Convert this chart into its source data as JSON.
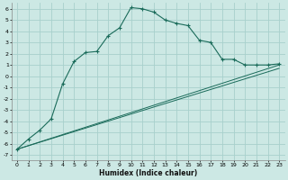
{
  "xlabel": "Humidex (Indice chaleur)",
  "bg_color": "#cce8e4",
  "grid_color": "#a8d0cc",
  "line_color": "#1a6b5a",
  "xlim": [
    -0.5,
    23.5
  ],
  "ylim": [
    -7.5,
    6.5
  ],
  "x_ticks": [
    0,
    1,
    2,
    3,
    4,
    5,
    6,
    7,
    8,
    9,
    10,
    11,
    12,
    13,
    14,
    15,
    16,
    17,
    18,
    19,
    20,
    21,
    22,
    23
  ],
  "y_ticks": [
    -7,
    -6,
    -5,
    -4,
    -3,
    -2,
    -1,
    0,
    1,
    2,
    3,
    4,
    5,
    6
  ],
  "line1_x": [
    0,
    23
  ],
  "line1_y": [
    -6.5,
    1.0
  ],
  "line2_x": [
    0,
    23
  ],
  "line2_y": [
    -6.5,
    0.7
  ],
  "main_x": [
    0,
    1,
    2,
    3,
    4,
    5,
    6,
    7,
    8,
    9,
    10,
    11,
    12,
    13,
    14,
    15,
    16,
    17,
    18,
    19,
    20,
    21,
    22,
    23
  ],
  "main_y": [
    -6.5,
    -5.6,
    -4.8,
    -3.8,
    -0.7,
    1.3,
    2.1,
    2.2,
    3.6,
    4.3,
    6.1,
    6.0,
    5.7,
    5.0,
    4.7,
    4.5,
    3.2,
    3.0,
    1.5,
    1.5,
    1.0,
    1.0,
    1.0,
    1.1
  ]
}
